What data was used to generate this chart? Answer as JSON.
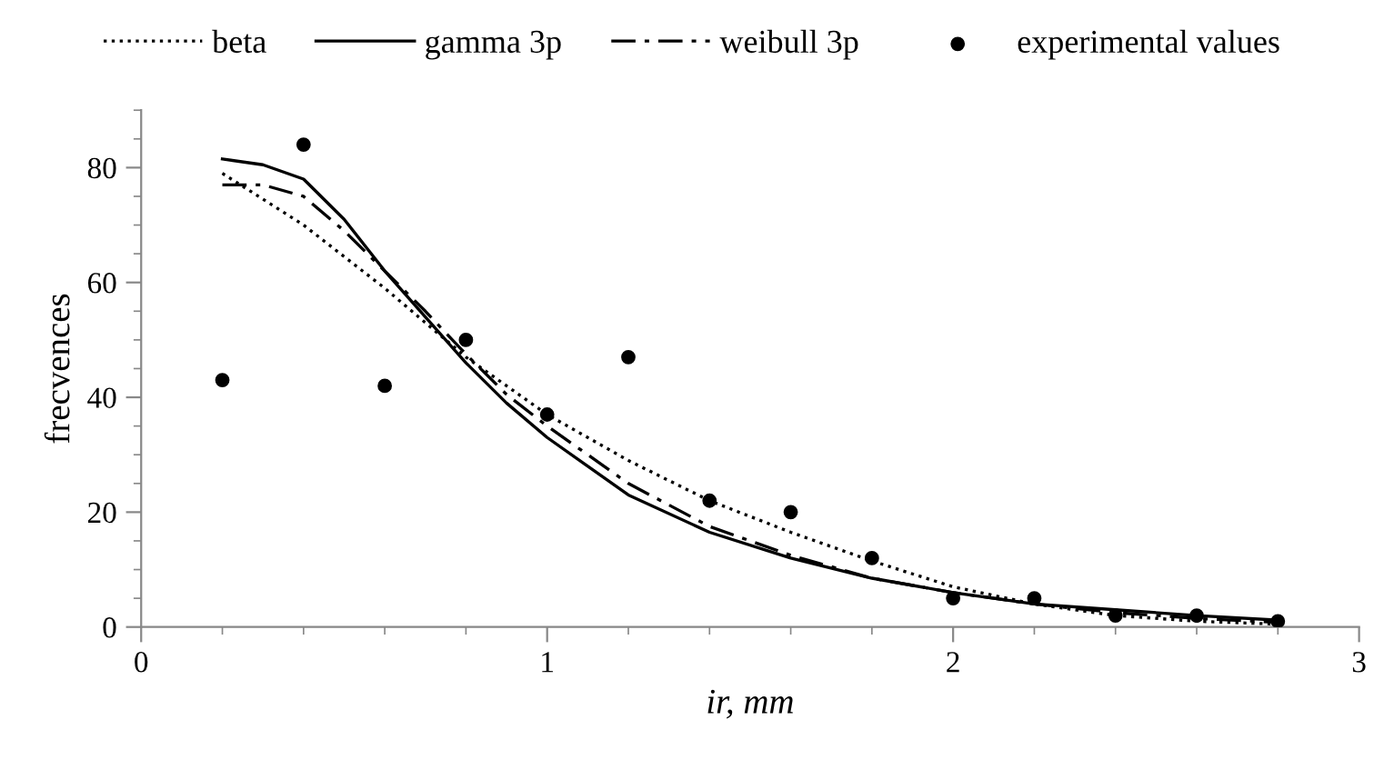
{
  "chart_data": {
    "type": "line",
    "xlabel": "ir, mm",
    "ylabel": "frecvences",
    "xlim": [
      0,
      3
    ],
    "xticks": [
      0,
      1,
      2,
      3
    ],
    "ylim": [
      0,
      90
    ],
    "yticks": [
      0,
      20,
      40,
      60,
      80
    ],
    "grid": false,
    "legend": "top",
    "marker": "none",
    "series": [
      {
        "name": "beta",
        "color": "#000000",
        "line_style": "dotted",
        "x": [
          0.2,
          0.4,
          0.6,
          0.8,
          1.0,
          1.2,
          1.4,
          1.6,
          1.8,
          2.0,
          2.2,
          2.4,
          2.6,
          2.8
        ],
        "values": [
          79,
          70,
          59,
          47,
          37,
          29,
          22,
          16.5,
          11.5,
          7,
          4,
          2,
          1,
          0.5
        ]
      },
      {
        "name": "gamma 3p",
        "color": "#000000",
        "line_style": "solid",
        "x": [
          0.2,
          0.3,
          0.4,
          0.5,
          0.6,
          0.7,
          0.8,
          0.9,
          1.0,
          1.2,
          1.4,
          1.6,
          1.8,
          2.0,
          2.2,
          2.4,
          2.6,
          2.8
        ],
        "values": [
          81.5,
          80.5,
          78,
          71,
          62,
          54,
          46,
          39,
          33,
          23,
          16.5,
          12,
          8.5,
          6,
          4,
          3,
          2,
          1.2
        ]
      },
      {
        "name": "weibull 3p",
        "color": "#000000",
        "line_style": "dashdot",
        "x": [
          0.2,
          0.3,
          0.4,
          0.5,
          0.6,
          0.7,
          0.8,
          0.9,
          1.0,
          1.2,
          1.4,
          1.6,
          1.8,
          2.0,
          2.2,
          2.4,
          2.6,
          2.8
        ],
        "values": [
          77,
          77,
          75,
          69,
          62,
          55,
          47.5,
          40.5,
          35,
          25,
          17.5,
          12.5,
          8.5,
          6,
          4,
          2.5,
          1.5,
          0.8
        ]
      },
      {
        "name": "experimental values",
        "color": "#000000",
        "type": "scatter",
        "marker": "circle",
        "x": [
          0.2,
          0.4,
          0.6,
          0.8,
          1.0,
          1.2,
          1.4,
          1.6,
          1.8,
          2.0,
          2.2,
          2.4,
          2.6,
          2.8
        ],
        "values": [
          43,
          84,
          42,
          50,
          37,
          47,
          22,
          20,
          12,
          5,
          5,
          2,
          2,
          1
        ]
      }
    ]
  }
}
